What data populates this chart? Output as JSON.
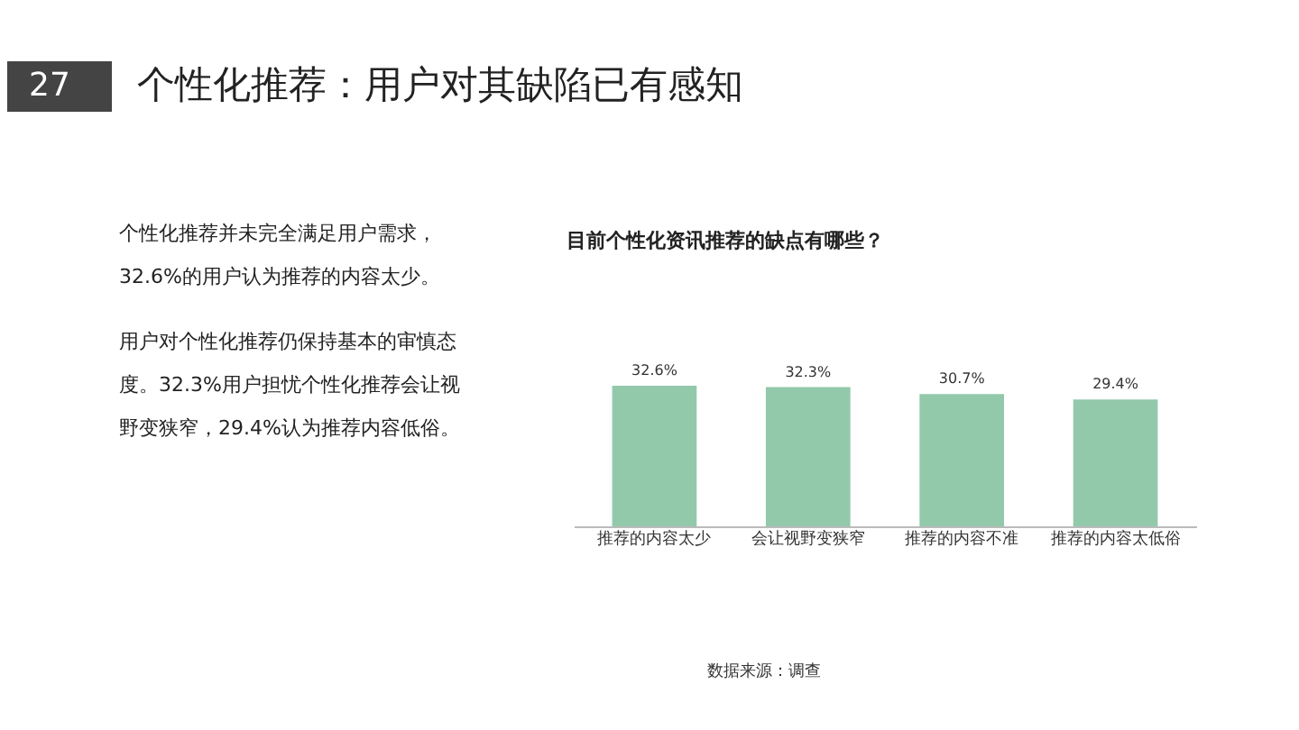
{
  "chart_data": {
    "type": "bar",
    "title": "目前个性化资讯推荐的缺点有哪些？",
    "categories": [
      "推荐的内容太少",
      "会让视野变狭窄",
      "推荐的内容不准",
      "推荐的内容太低俗"
    ],
    "values": [
      32.6,
      32.3,
      30.7,
      29.4
    ],
    "value_labels": [
      "32.6%",
      "32.3%",
      "30.7%",
      "29.4%"
    ],
    "color": "#93c9ab",
    "grid": false,
    "annotations": [
      "27",
      "个性化推荐：用户对其缺陷已有感知",
      "个性化推荐并未完全满足用户需求，32.6%的用户认为推荐的内容太少。",
      "用户对个性化推荐仍保持基本的审慎态度。32.3%用户担忧个性化推荐会让视野变狭窄，29.4%认为推荐内容低俗。",
      "数据来源：调查"
    ]
  }
}
